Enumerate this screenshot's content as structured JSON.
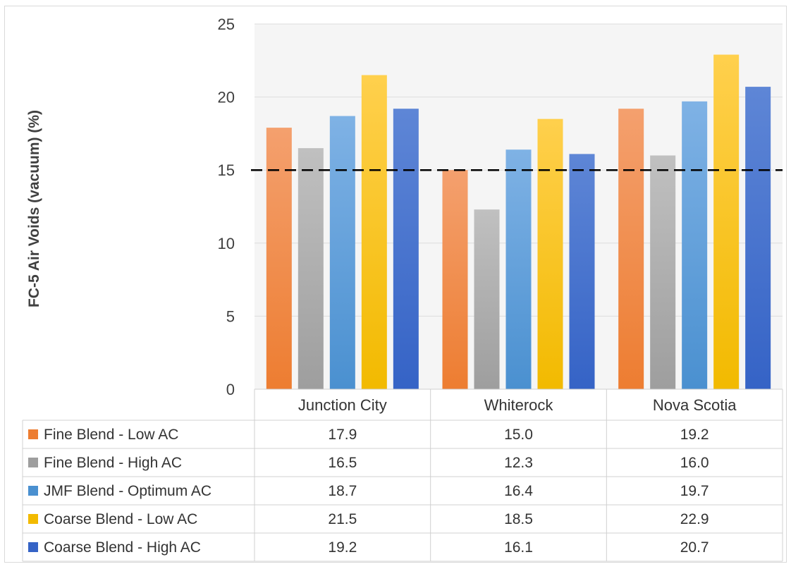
{
  "chart_data": {
    "type": "bar",
    "title": "",
    "xlabel": "",
    "ylabel": "FC-5 Air Voids (vacuum) (%)",
    "ylim": [
      0,
      25
    ],
    "yticks": [
      0,
      5,
      10,
      15,
      20,
      25
    ],
    "grid": true,
    "legend": "data-table",
    "reference_line": {
      "value": 15,
      "style": "dashed",
      "color": "#000000"
    },
    "categories": [
      "Junction City",
      "Whiterock",
      "Nova Scotia"
    ],
    "series": [
      {
        "name": "Fine Blend - Low AC",
        "values": [
          17.9,
          15.0,
          19.2
        ],
        "labels": [
          "17.9",
          "15.0",
          "19.2"
        ],
        "color": "#ED7D31",
        "color_light": "#F4A06E"
      },
      {
        "name": "Fine Blend - High AC",
        "values": [
          16.5,
          12.3,
          16.0
        ],
        "labels": [
          "16.5",
          "12.3",
          "16.0"
        ],
        "color": "#9E9E9E",
        "color_light": "#C0C0C0"
      },
      {
        "name": "JMF Blend - Optimum AC",
        "values": [
          18.7,
          16.4,
          19.7
        ],
        "labels": [
          "18.7",
          "16.4",
          "19.7"
        ],
        "color": "#4A90D0",
        "color_light": "#7FB2E5"
      },
      {
        "name": "Coarse Blend - Low AC",
        "values": [
          21.5,
          18.5,
          22.9
        ],
        "labels": [
          "21.5",
          "18.5",
          "22.9"
        ],
        "color": "#F2BA00",
        "color_light": "#FFD04D"
      },
      {
        "name": "Coarse Blend - High AC",
        "values": [
          19.2,
          16.1,
          20.7
        ],
        "labels": [
          "19.2",
          "16.1",
          "20.7"
        ],
        "color": "#3563C6",
        "color_light": "#5E86D6"
      }
    ]
  }
}
